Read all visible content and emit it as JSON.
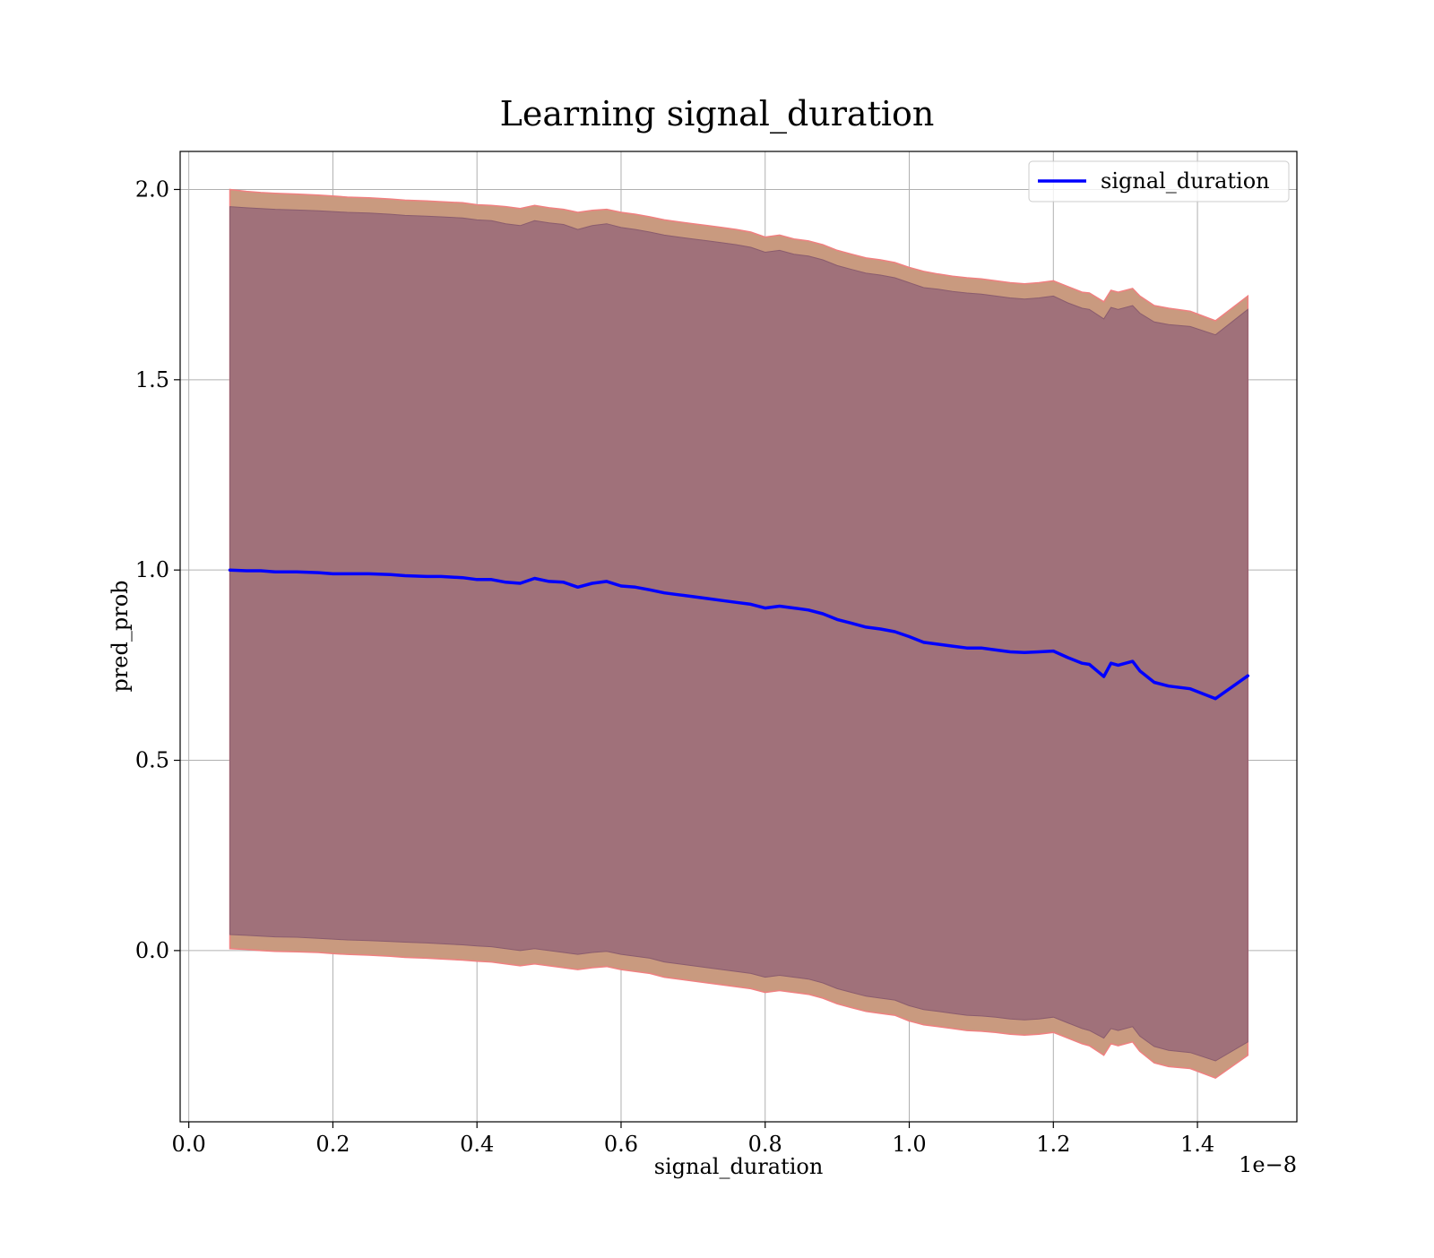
{
  "chart_data": {
    "type": "line",
    "title": "Learning signal_duration",
    "xlabel": "signal_duration",
    "ylabel": "pred_prob",
    "x_scale_label": "1e−8",
    "x_ticks": [
      "0.0",
      "0.2",
      "0.4",
      "0.6",
      "0.8",
      "1.0",
      "1.2",
      "1.4"
    ],
    "y_ticks": [
      "0.0",
      "0.5",
      "1.0",
      "1.5",
      "2.0"
    ],
    "x_tick_values": [
      0.0,
      0.2,
      0.4,
      0.6,
      0.8,
      1.0,
      1.2,
      1.4
    ],
    "y_tick_values": [
      0.0,
      0.5,
      1.0,
      1.5,
      2.0
    ],
    "xlim": [
      -0.012,
      1.538
    ],
    "ylim": [
      -0.45,
      2.1
    ],
    "grid": true,
    "legend_position": "top-right",
    "colors": {
      "line": "#0000ff",
      "inner_band": "#a0717a",
      "outer_band": "#c99a7f",
      "band_edge": "#f08080",
      "grid": "#b0b0b0"
    },
    "series": [
      {
        "name": "signal_duration",
        "x": [
          0.057,
          0.08,
          0.1,
          0.12,
          0.15,
          0.18,
          0.2,
          0.22,
          0.25,
          0.28,
          0.3,
          0.33,
          0.35,
          0.38,
          0.4,
          0.42,
          0.44,
          0.46,
          0.48,
          0.5,
          0.52,
          0.54,
          0.56,
          0.58,
          0.6,
          0.62,
          0.64,
          0.66,
          0.68,
          0.7,
          0.72,
          0.74,
          0.76,
          0.78,
          0.8,
          0.82,
          0.84,
          0.86,
          0.88,
          0.9,
          0.92,
          0.94,
          0.96,
          0.98,
          1.0,
          1.02,
          1.04,
          1.06,
          1.08,
          1.1,
          1.12,
          1.14,
          1.16,
          1.18,
          1.2,
          1.22,
          1.24,
          1.25,
          1.27,
          1.28,
          1.29,
          1.31,
          1.32,
          1.34,
          1.36,
          1.39,
          1.425,
          1.47
        ],
        "y": [
          1.0,
          0.998,
          0.998,
          0.995,
          0.995,
          0.993,
          0.99,
          0.99,
          0.99,
          0.988,
          0.985,
          0.983,
          0.983,
          0.98,
          0.975,
          0.975,
          0.968,
          0.965,
          0.978,
          0.97,
          0.968,
          0.955,
          0.965,
          0.97,
          0.958,
          0.955,
          0.948,
          0.94,
          0.935,
          0.93,
          0.925,
          0.92,
          0.915,
          0.91,
          0.9,
          0.905,
          0.9,
          0.895,
          0.885,
          0.87,
          0.86,
          0.85,
          0.845,
          0.838,
          0.825,
          0.81,
          0.805,
          0.8,
          0.795,
          0.795,
          0.79,
          0.785,
          0.783,
          0.785,
          0.787,
          0.77,
          0.755,
          0.752,
          0.72,
          0.755,
          0.75,
          0.76,
          0.735,
          0.705,
          0.695,
          0.688,
          0.662,
          0.722
        ]
      }
    ],
    "band_outer": {
      "upper": [
        2.0,
        1.995,
        1.992,
        1.99,
        1.988,
        1.985,
        1.983,
        1.98,
        1.978,
        1.975,
        1.972,
        1.97,
        1.968,
        1.965,
        1.96,
        1.958,
        1.955,
        1.95,
        1.958,
        1.952,
        1.948,
        1.94,
        1.945,
        1.948,
        1.94,
        1.935,
        1.928,
        1.92,
        1.915,
        1.91,
        1.905,
        1.9,
        1.895,
        1.888,
        1.875,
        1.88,
        1.87,
        1.865,
        1.855,
        1.84,
        1.83,
        1.82,
        1.815,
        1.808,
        1.795,
        1.785,
        1.778,
        1.772,
        1.768,
        1.765,
        1.76,
        1.755,
        1.752,
        1.755,
        1.76,
        1.745,
        1.73,
        1.728,
        1.705,
        1.735,
        1.73,
        1.74,
        1.72,
        1.695,
        1.688,
        1.68,
        1.655,
        1.72
      ],
      "lower": [
        0.005,
        0.003,
        0.0,
        -0.002,
        -0.003,
        -0.005,
        -0.008,
        -0.01,
        -0.012,
        -0.015,
        -0.018,
        -0.02,
        -0.022,
        -0.025,
        -0.028,
        -0.03,
        -0.035,
        -0.04,
        -0.035,
        -0.04,
        -0.045,
        -0.05,
        -0.045,
        -0.042,
        -0.05,
        -0.055,
        -0.06,
        -0.07,
        -0.075,
        -0.08,
        -0.085,
        -0.09,
        -0.095,
        -0.1,
        -0.11,
        -0.105,
        -0.11,
        -0.115,
        -0.125,
        -0.14,
        -0.15,
        -0.16,
        -0.165,
        -0.17,
        -0.185,
        -0.195,
        -0.2,
        -0.205,
        -0.21,
        -0.212,
        -0.215,
        -0.22,
        -0.222,
        -0.22,
        -0.215,
        -0.23,
        -0.245,
        -0.25,
        -0.275,
        -0.245,
        -0.25,
        -0.24,
        -0.265,
        -0.295,
        -0.305,
        -0.31,
        -0.335,
        -0.275
      ]
    },
    "band_inner": {
      "upper": [
        1.955,
        1.952,
        1.95,
        1.948,
        1.946,
        1.944,
        1.942,
        1.94,
        1.938,
        1.935,
        1.932,
        1.93,
        1.928,
        1.925,
        1.92,
        1.918,
        1.91,
        1.905,
        1.918,
        1.912,
        1.908,
        1.895,
        1.905,
        1.91,
        1.9,
        1.895,
        1.888,
        1.88,
        1.875,
        1.87,
        1.865,
        1.86,
        1.855,
        1.848,
        1.835,
        1.84,
        1.83,
        1.825,
        1.815,
        1.8,
        1.79,
        1.78,
        1.775,
        1.768,
        1.755,
        1.742,
        1.738,
        1.732,
        1.728,
        1.725,
        1.72,
        1.715,
        1.712,
        1.715,
        1.72,
        1.702,
        1.688,
        1.685,
        1.66,
        1.69,
        1.685,
        1.695,
        1.675,
        1.652,
        1.645,
        1.64,
        1.618,
        1.685
      ],
      "lower": [
        0.042,
        0.04,
        0.038,
        0.036,
        0.035,
        0.032,
        0.03,
        0.028,
        0.026,
        0.024,
        0.022,
        0.02,
        0.018,
        0.015,
        0.012,
        0.01,
        0.005,
        0.0,
        0.005,
        0.0,
        -0.005,
        -0.01,
        -0.005,
        -0.002,
        -0.01,
        -0.015,
        -0.02,
        -0.03,
        -0.035,
        -0.04,
        -0.045,
        -0.05,
        -0.055,
        -0.06,
        -0.07,
        -0.065,
        -0.07,
        -0.075,
        -0.085,
        -0.1,
        -0.11,
        -0.12,
        -0.125,
        -0.13,
        -0.145,
        -0.155,
        -0.16,
        -0.165,
        -0.17,
        -0.172,
        -0.175,
        -0.18,
        -0.182,
        -0.18,
        -0.175,
        -0.19,
        -0.205,
        -0.21,
        -0.23,
        -0.205,
        -0.21,
        -0.2,
        -0.225,
        -0.252,
        -0.262,
        -0.268,
        -0.29,
        -0.24
      ]
    }
  }
}
